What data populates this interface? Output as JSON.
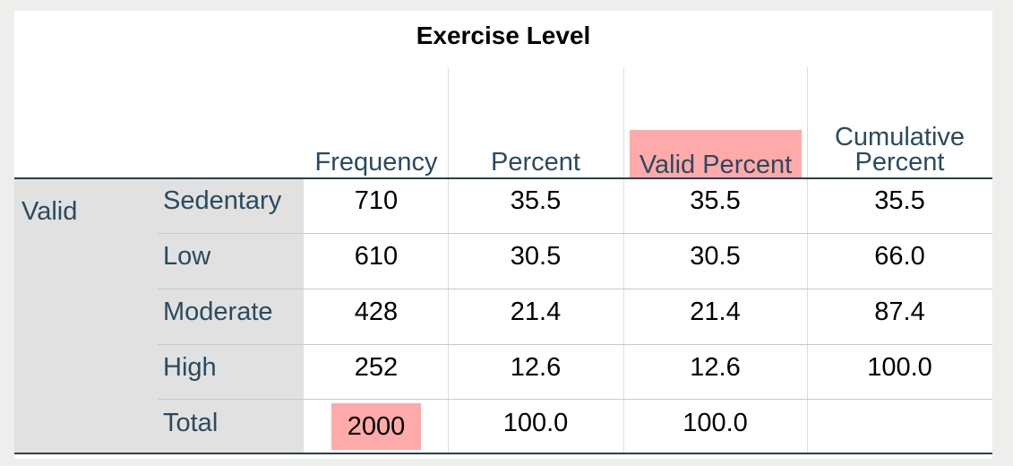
{
  "table": {
    "title": "Exercise Level",
    "group_label": "Valid",
    "columns": {
      "frequency": "Frequency",
      "percent": "Percent",
      "valid_percent": "Valid Percent",
      "cumulative_line1": "Cumulative",
      "cumulative_line2": "Percent"
    },
    "rows": [
      {
        "label": "Sedentary",
        "frequency": "710",
        "percent": "35.5",
        "valid_percent": "35.5",
        "cumulative": "35.5"
      },
      {
        "label": "Low",
        "frequency": "610",
        "percent": "30.5",
        "valid_percent": "30.5",
        "cumulative": "66.0"
      },
      {
        "label": "Moderate",
        "frequency": "428",
        "percent": "21.4",
        "valid_percent": "21.4",
        "cumulative": "87.4"
      },
      {
        "label": "High",
        "frequency": "252",
        "percent": "12.6",
        "valid_percent": "12.6",
        "cumulative": "100.0"
      },
      {
        "label": "Total",
        "frequency": "2000",
        "percent": "100.0",
        "valid_percent": "100.0",
        "cumulative": ""
      }
    ],
    "highlight_color": "#ffaaaa",
    "header_text_color": "#2b4a5e"
  }
}
